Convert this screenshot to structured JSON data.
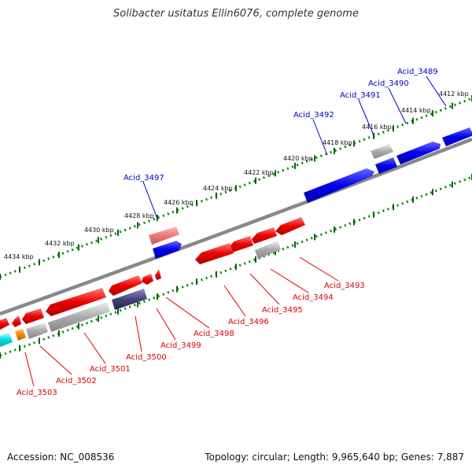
{
  "header": {
    "title": "Solibacter usitatus Ellin6076, complete genome"
  },
  "footer": {
    "accession": "Accession: NC_008536",
    "topology": "Topology: circular; Length: 9,965,640 bp; Genes: 7,887"
  },
  "ruler": {
    "labels": [
      "4412 kbp",
      "4414 kbp",
      "4416 kbp",
      "4418 kbp",
      "4420 kbp",
      "4422 kbp",
      "4424 kbp",
      "4426 kbp",
      "4428 kbp",
      "4430 kbp",
      "4432 kbp",
      "4434 kbp"
    ]
  },
  "colors": {
    "forward": "#0000ee",
    "reverse": "#ee0000",
    "other": "#aaaaaa",
    "backbone": "#777777",
    "ticks": "#006600"
  },
  "forward_genes": {
    "labels": [
      "Acid_3489",
      "Acid_3490",
      "Acid_3491",
      "Acid_3492",
      "Acid_3497"
    ]
  },
  "reverse_genes": {
    "labels": [
      "Acid_3493",
      "Acid_3494",
      "Acid_3495",
      "Acid_3496",
      "Acid_3498",
      "Acid_3499",
      "Acid_3500",
      "Acid_3501",
      "Acid_3502",
      "Acid_3503"
    ]
  }
}
